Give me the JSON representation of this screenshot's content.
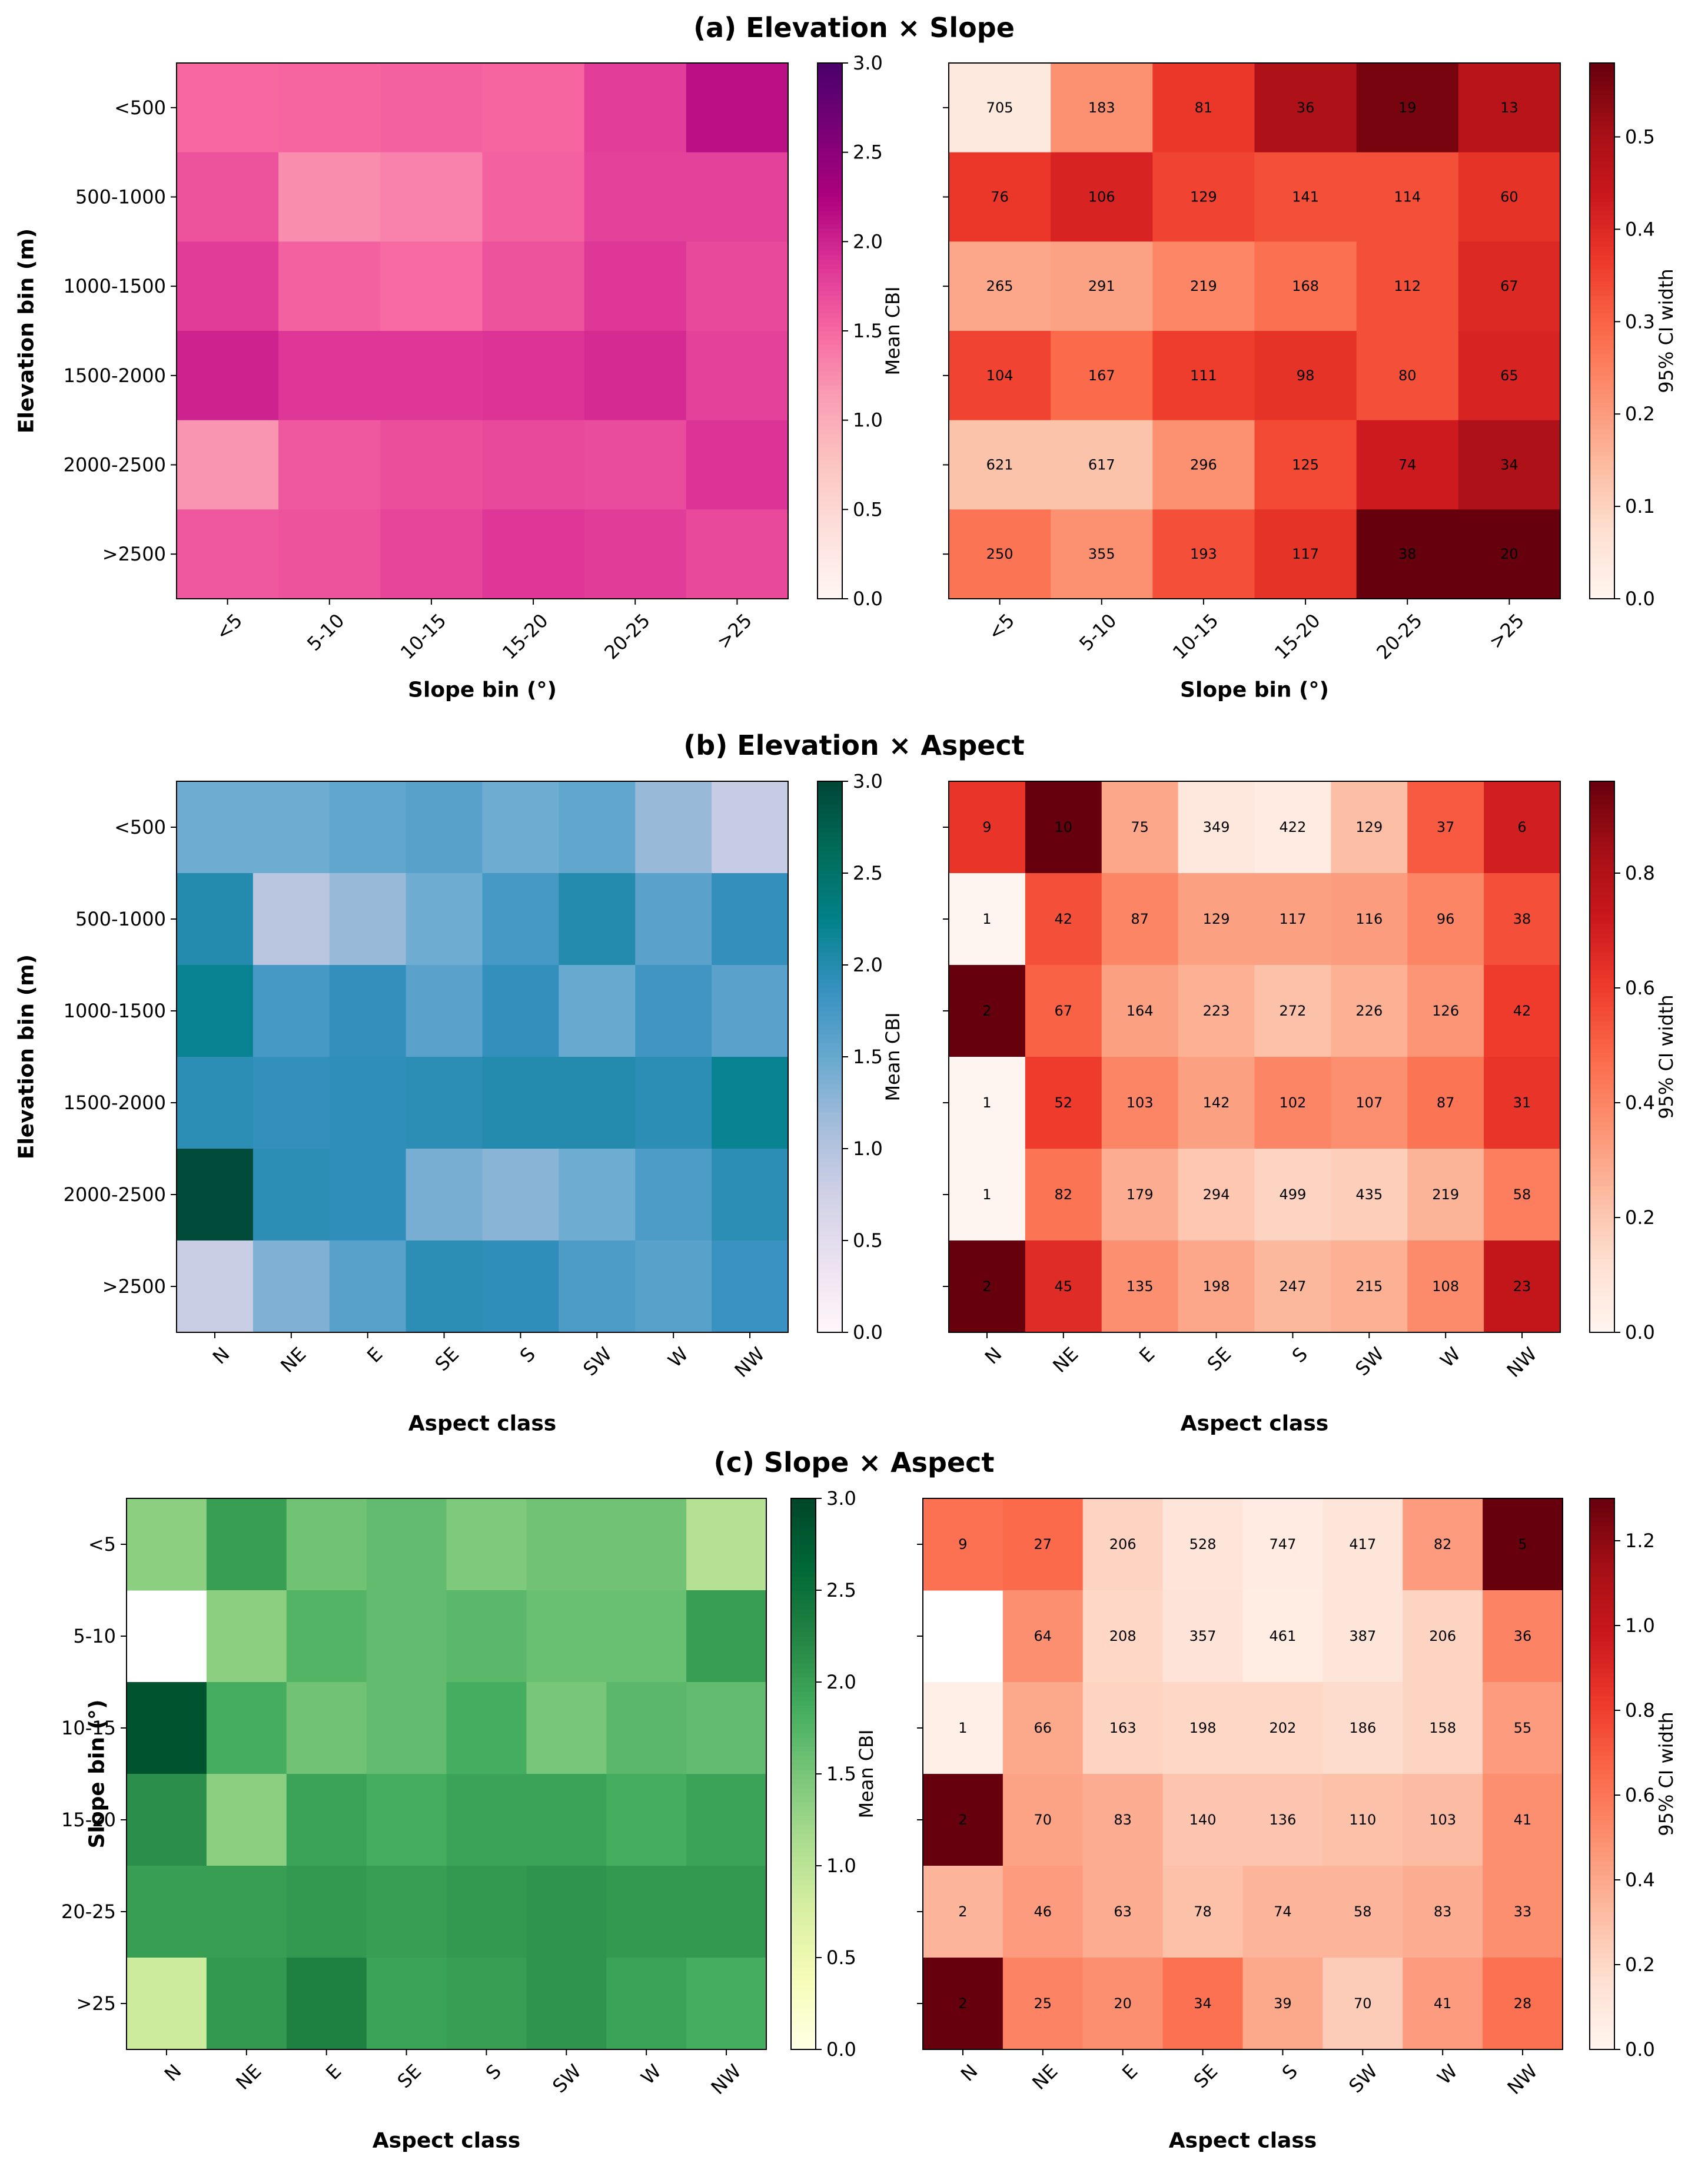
{
  "chart_data": [
    {
      "id": "a",
      "type": "heatmap",
      "title": "(a) Elevation × Slope",
      "ylabel": "Elevation bin (m)",
      "xlabel": "Slope bin (°)",
      "rows": [
        "<500",
        "500-1000",
        "1000-1500",
        "1500-2000",
        "2000-2500",
        ">2500"
      ],
      "cols": [
        "<5",
        "5-10",
        "10-15",
        "15-20",
        "20-25",
        ">25"
      ],
      "mean": {
        "colorbar_label": "Mean CBI",
        "colormap": "RdPu",
        "vmin": 0,
        "vmax": 3,
        "ticks": [
          "0.0",
          "0.5",
          "1.0",
          "1.5",
          "2.0",
          "2.5",
          "3.0"
        ],
        "values": [
          [
            1.5,
            1.52,
            1.55,
            1.52,
            1.8,
            2.15
          ],
          [
            1.65,
            1.25,
            1.32,
            1.55,
            1.78,
            1.78
          ],
          [
            1.82,
            1.55,
            1.48,
            1.65,
            1.85,
            1.72
          ],
          [
            2.0,
            1.85,
            1.85,
            1.88,
            1.95,
            1.78
          ],
          [
            1.2,
            1.62,
            1.68,
            1.72,
            1.7,
            1.88
          ],
          [
            1.62,
            1.65,
            1.75,
            1.85,
            1.82,
            1.72
          ]
        ]
      },
      "ci": {
        "colorbar_label": "95% CI width",
        "colormap": "Reds",
        "vmin": 0,
        "vmax": 0.58,
        "ticks": [
          "0.0",
          "0.1",
          "0.2",
          "0.3",
          "0.4",
          "0.5"
        ],
        "values": [
          [
            0.04,
            0.22,
            0.37,
            0.49,
            0.56,
            0.47
          ],
          [
            0.37,
            0.41,
            0.35,
            0.33,
            0.33,
            0.38
          ],
          [
            0.18,
            0.19,
            0.24,
            0.28,
            0.33,
            0.4
          ],
          [
            0.35,
            0.29,
            0.36,
            0.38,
            0.33,
            0.41
          ],
          [
            0.13,
            0.13,
            0.22,
            0.34,
            0.43,
            0.49
          ],
          [
            0.27,
            0.22,
            0.33,
            0.38,
            0.58,
            0.58
          ]
        ],
        "counts": [
          [
            705,
            183,
            81,
            36,
            19,
            13
          ],
          [
            76,
            106,
            129,
            141,
            114,
            60
          ],
          [
            265,
            291,
            219,
            168,
            112,
            67
          ],
          [
            104,
            167,
            111,
            98,
            80,
            65
          ],
          [
            621,
            617,
            296,
            125,
            74,
            34
          ],
          [
            250,
            355,
            193,
            117,
            38,
            20
          ]
        ]
      }
    },
    {
      "id": "b",
      "type": "heatmap",
      "title": "(b) Elevation × Aspect",
      "ylabel": "Elevation bin (m)",
      "xlabel": "Aspect class",
      "rows": [
        "<500",
        "500-1000",
        "1000-1500",
        "1500-2000",
        "2000-2500",
        ">2500"
      ],
      "cols": [
        "N",
        "NE",
        "E",
        "SE",
        "S",
        "SW",
        "W",
        "NW"
      ],
      "mean": {
        "colorbar_label": "Mean CBI",
        "colormap": "PuBuGn",
        "vmin": 0,
        "vmax": 3,
        "ticks": [
          "0.0",
          "0.5",
          "1.0",
          "1.5",
          "2.0",
          "2.5",
          "3.0"
        ],
        "values": [
          [
            1.45,
            1.45,
            1.55,
            1.62,
            1.45,
            1.55,
            1.2,
            0.85
          ],
          [
            2.0,
            0.95,
            1.2,
            1.45,
            1.75,
            2.0,
            1.6,
            1.9
          ],
          [
            2.2,
            1.75,
            1.9,
            1.6,
            1.9,
            1.5,
            1.8,
            1.6
          ],
          [
            1.95,
            1.9,
            1.92,
            1.95,
            2.0,
            2.0,
            1.95,
            2.2
          ],
          [
            2.95,
            1.95,
            1.92,
            1.4,
            1.3,
            1.45,
            1.7,
            1.95
          ],
          [
            0.8,
            1.35,
            1.62,
            1.95,
            1.92,
            1.7,
            1.62,
            1.85
          ]
        ]
      },
      "ci": {
        "colorbar_label": "95% CI width",
        "colormap": "Reds",
        "vmin": 0,
        "vmax": 0.96,
        "ticks": [
          "0.0",
          "0.2",
          "0.4",
          "0.6",
          "0.8"
        ],
        "values": [
          [
            0.62,
            0.96,
            0.3,
            0.08,
            0.06,
            0.23,
            0.52,
            0.7
          ],
          [
            0.0,
            0.55,
            0.4,
            0.32,
            0.32,
            0.33,
            0.4,
            0.55
          ],
          [
            0.96,
            0.5,
            0.32,
            0.27,
            0.22,
            0.27,
            0.35,
            0.6
          ],
          [
            0.0,
            0.6,
            0.4,
            0.32,
            0.4,
            0.37,
            0.45,
            0.62
          ],
          [
            0.0,
            0.45,
            0.28,
            0.2,
            0.16,
            0.18,
            0.26,
            0.42
          ],
          [
            0.96,
            0.65,
            0.37,
            0.3,
            0.25,
            0.27,
            0.38,
            0.75
          ]
        ],
        "counts": [
          [
            9,
            10,
            75,
            349,
            422,
            129,
            37,
            6
          ],
          [
            1,
            42,
            87,
            129,
            117,
            116,
            96,
            38
          ],
          [
            2,
            67,
            164,
            223,
            272,
            226,
            126,
            42
          ],
          [
            1,
            52,
            103,
            142,
            102,
            107,
            87,
            31
          ],
          [
            1,
            82,
            179,
            294,
            499,
            435,
            219,
            58
          ],
          [
            2,
            45,
            135,
            198,
            247,
            215,
            108,
            23
          ]
        ]
      }
    },
    {
      "id": "c",
      "type": "heatmap",
      "title": "(c)  Slope × Aspect",
      "ylabel": "Slope bin (°)",
      "xlabel": "Aspect class",
      "rows": [
        "<5",
        "5-10",
        "10-15",
        "15-20",
        "20-25",
        ">25"
      ],
      "cols": [
        "N",
        "NE",
        "E",
        "SE",
        "S",
        "SW",
        "W",
        "NW"
      ],
      "mean": {
        "colorbar_label": "Mean CBI",
        "colormap": "YlGn",
        "vmin": 0,
        "vmax": 3,
        "ticks": [
          "0.0",
          "0.5",
          "1.0",
          "1.5",
          "2.0",
          "2.5",
          "3.0"
        ],
        "values": [
          [
            1.35,
            2.0,
            1.55,
            1.65,
            1.45,
            1.55,
            1.55,
            1.05
          ],
          [
            null,
            1.35,
            1.75,
            1.65,
            1.7,
            1.6,
            1.6,
            2.0
          ],
          [
            2.85,
            1.85,
            1.55,
            1.65,
            1.85,
            1.5,
            1.7,
            1.65
          ],
          [
            2.15,
            1.35,
            1.95,
            1.85,
            1.95,
            1.95,
            1.85,
            1.95
          ],
          [
            2.0,
            2.0,
            2.05,
            2.0,
            2.05,
            2.1,
            2.05,
            2.05
          ],
          [
            0.85,
            2.05,
            2.3,
            1.95,
            2.0,
            2.1,
            1.95,
            1.85
          ]
        ]
      },
      "ci": {
        "colorbar_label": "95% CI width",
        "colormap": "Reds",
        "vmin": 0,
        "vmax": 1.3,
        "ticks": [
          "0.0",
          "0.2",
          "0.4",
          "0.6",
          "0.8",
          "1.0",
          "1.2"
        ],
        "values": [
          [
            0.62,
            0.65,
            0.22,
            0.12,
            0.08,
            0.12,
            0.45,
            1.3
          ],
          [
            null,
            0.5,
            0.2,
            0.13,
            0.07,
            0.12,
            0.22,
            0.55
          ],
          [
            0.05,
            0.4,
            0.22,
            0.2,
            0.2,
            0.18,
            0.22,
            0.45
          ],
          [
            1.3,
            0.42,
            0.38,
            0.28,
            0.28,
            0.3,
            0.32,
            0.5
          ],
          [
            0.35,
            0.45,
            0.38,
            0.3,
            0.35,
            0.35,
            0.38,
            0.5
          ],
          [
            1.3,
            0.55,
            0.5,
            0.62,
            0.4,
            0.25,
            0.45,
            0.62
          ]
        ],
        "counts": [
          [
            9,
            27,
            206,
            528,
            747,
            417,
            82,
            5
          ],
          [
            null,
            64,
            208,
            357,
            461,
            387,
            206,
            36
          ],
          [
            1,
            66,
            163,
            198,
            202,
            186,
            158,
            55
          ],
          [
            2,
            70,
            83,
            140,
            136,
            110,
            103,
            41
          ],
          [
            2,
            46,
            63,
            78,
            74,
            58,
            83,
            33
          ],
          [
            2,
            25,
            20,
            34,
            39,
            70,
            41,
            28
          ]
        ]
      }
    }
  ]
}
